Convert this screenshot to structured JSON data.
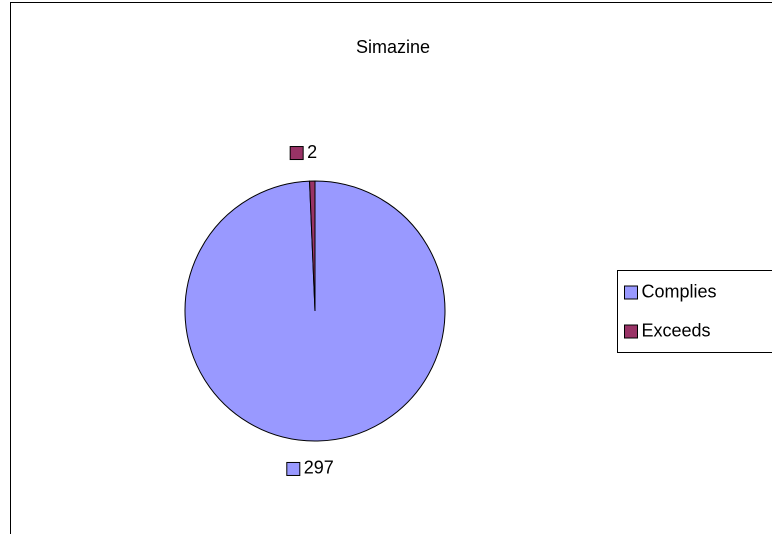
{
  "chart_data": {
    "type": "pie",
    "title": "Simazine",
    "categories": [
      "Complies",
      "Exceeds"
    ],
    "values": [
      297,
      2
    ],
    "colors": [
      "#9999ff",
      "#993366"
    ],
    "legend": "right"
  }
}
